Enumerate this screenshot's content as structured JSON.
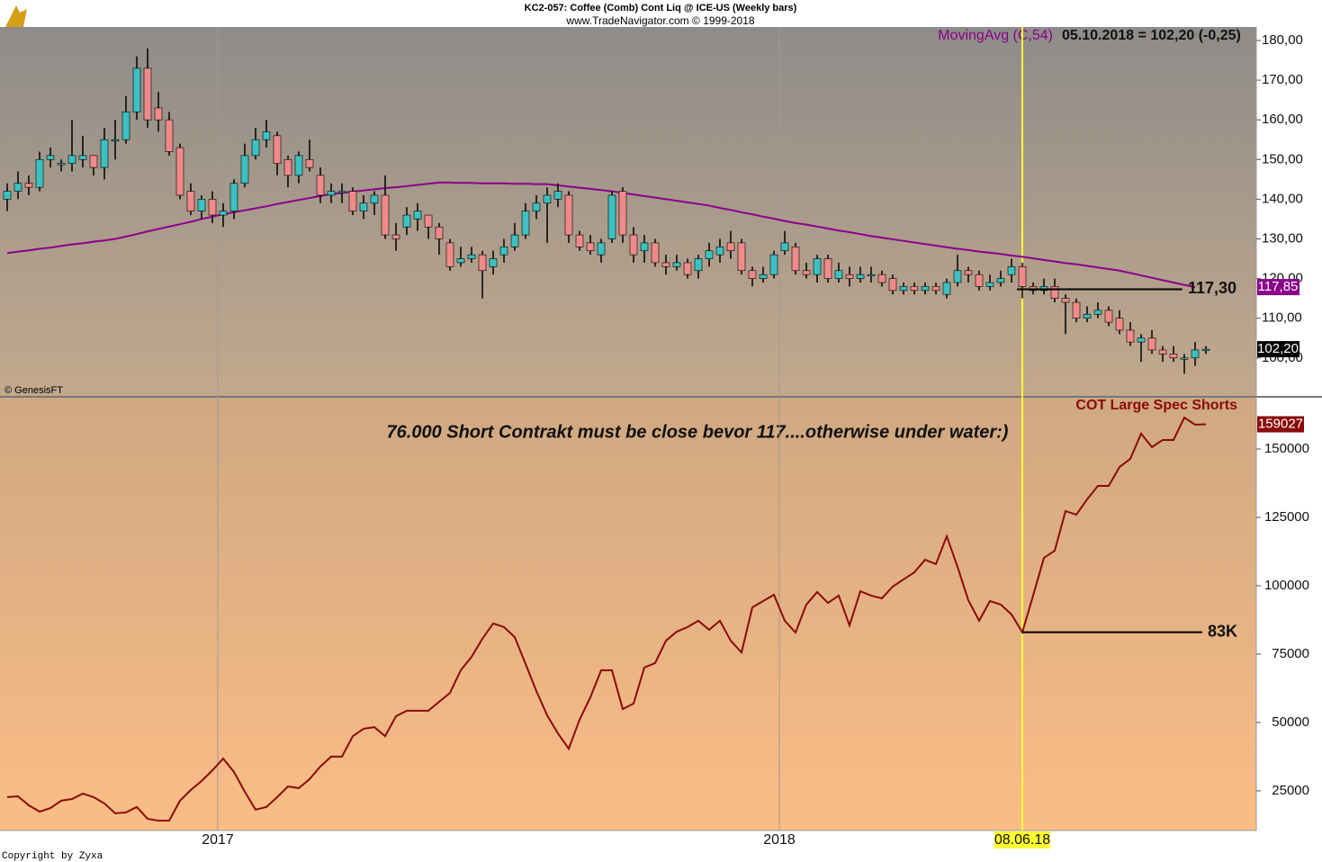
{
  "header": {
    "title": "KC2-057:  Coffee (Comb) Cont Liq @ ICE-US  (Weekly bars)",
    "subtitle": "www.TradeNavigator.com © 1999-2018"
  },
  "footer": "Copyright by Zyxa",
  "chart_data": [
    {
      "type": "candlestick",
      "source": "© GenesisFT",
      "up_color": "#3cc0c0",
      "down_color": "#f08a8a",
      "open": [
        140,
        142,
        144,
        143,
        150,
        149,
        149,
        150,
        151,
        148,
        155,
        155,
        162,
        173,
        163,
        160,
        153,
        142,
        137,
        140,
        136,
        137,
        144,
        151,
        155,
        156,
        150,
        146,
        150,
        146,
        141,
        142,
        142,
        137,
        139,
        141,
        131,
        133,
        135,
        136,
        133,
        129,
        124,
        125,
        126,
        123,
        126,
        128,
        131,
        137,
        139,
        140,
        141,
        131,
        129,
        126,
        130,
        142,
        131,
        127,
        129,
        124,
        123,
        124,
        122,
        125,
        126,
        129,
        129,
        122,
        120,
        121,
        127,
        128,
        122,
        121,
        125,
        120,
        121,
        120,
        121,
        121,
        120,
        117,
        118,
        117,
        118,
        116,
        119,
        122,
        121,
        118,
        119,
        121,
        123,
        118,
        117,
        118,
        115,
        114,
        110,
        111,
        112,
        110,
        107,
        104,
        105,
        102,
        101,
        100,
        100,
        102.2
      ],
      "high": [
        144,
        147,
        146,
        152,
        153,
        150,
        160,
        156,
        151,
        158,
        160,
        166,
        176,
        178,
        167,
        162,
        154,
        144,
        141,
        142,
        139,
        145,
        154,
        158,
        160,
        157,
        151,
        152,
        155,
        148,
        144,
        144,
        143,
        141,
        142,
        146,
        134,
        138,
        139,
        136,
        134,
        130,
        128,
        128,
        127,
        127,
        130,
        134,
        139,
        141,
        143,
        144,
        142,
        132,
        131,
        130,
        142,
        143,
        133,
        131,
        130,
        126,
        126,
        125,
        126,
        129,
        130,
        132,
        130,
        123,
        123,
        127,
        132,
        129,
        124,
        126,
        126,
        124,
        123,
        123,
        123,
        122,
        121,
        119,
        119,
        119,
        119,
        120,
        126,
        123,
        122,
        121,
        122,
        125,
        124,
        119,
        120,
        120,
        116,
        115,
        113,
        114,
        113,
        112,
        109,
        106,
        107,
        103,
        103,
        101,
        104,
        103
      ],
      "low": [
        137,
        140,
        141,
        142,
        148,
        147,
        147,
        148,
        146,
        145,
        150,
        154,
        160,
        158,
        157,
        151,
        140,
        136,
        135,
        134,
        133,
        135,
        143,
        150,
        153,
        146,
        143,
        144,
        147,
        139,
        139,
        139,
        136,
        135,
        136,
        130,
        127,
        131,
        132,
        130,
        126,
        122,
        123,
        124,
        115,
        121,
        124,
        127,
        130,
        135,
        129,
        138,
        129,
        127,
        126,
        124,
        129,
        129,
        124,
        124,
        123,
        121,
        122,
        120,
        120,
        123,
        124,
        125,
        121,
        118,
        119,
        120,
        126,
        121,
        120,
        119,
        119,
        119,
        118,
        119,
        119,
        118,
        116,
        116,
        116,
        116,
        116,
        115,
        118,
        119,
        117,
        117,
        118,
        119,
        115,
        116,
        116,
        114,
        106,
        109,
        109,
        110,
        108,
        106,
        103,
        99,
        101,
        99,
        99,
        96,
        98,
        101
      ],
      "close": [
        142,
        144,
        143,
        150,
        151,
        149,
        151,
        151,
        148,
        155,
        155,
        162,
        173,
        160,
        160,
        152,
        141,
        137,
        140,
        136,
        137,
        144,
        151,
        155,
        157,
        149,
        146,
        151,
        148,
        141,
        142,
        142,
        137,
        139,
        141,
        131,
        130,
        136,
        137,
        133,
        130,
        123,
        125,
        126,
        122,
        125,
        128,
        131,
        137,
        139,
        141,
        142,
        131,
        128,
        127,
        129,
        141,
        131,
        126,
        129,
        124,
        123,
        124,
        121,
        125,
        127,
        128,
        127,
        122,
        120,
        121,
        126,
        129,
        122,
        121,
        125,
        120,
        122,
        120,
        121,
        121,
        119,
        117,
        118,
        117,
        118,
        117,
        119,
        122,
        121,
        118,
        119,
        120,
        123,
        118,
        117,
        118,
        115,
        114,
        110,
        111,
        112,
        109,
        107,
        104,
        105,
        102,
        101,
        100,
        100,
        102,
        102.2
      ],
      "last_label": "102,20",
      "legend_value": "05.10.2018 = 102,20 (-0,25)",
      "series": [
        {
          "name": "MovingAvg (C,54)",
          "color": "#8b008b",
          "last_label": "117,85",
          "values": [
            126.4,
            126.8,
            127.1,
            127.5,
            127.8,
            128.2,
            128.6,
            128.9,
            129.3,
            129.6,
            130.0,
            130.6,
            131.2,
            131.9,
            132.5,
            133.1,
            133.7,
            134.3,
            135.0,
            135.6,
            136.2,
            136.7,
            137.2,
            137.7,
            138.2,
            138.8,
            139.3,
            139.8,
            140.3,
            140.8,
            141.3,
            141.6,
            141.9,
            142.2,
            142.5,
            142.8,
            143.0,
            143.3,
            143.6,
            143.9,
            144.2,
            144.2,
            144.1,
            144.1,
            144.0,
            144.0,
            144.0,
            143.9,
            143.9,
            143.8,
            143.8,
            143.5,
            143.2,
            142.9,
            142.6,
            142.3,
            142.0,
            141.6,
            141.2,
            140.8,
            140.4,
            140.0,
            139.6,
            139.2,
            138.8,
            138.4,
            137.8,
            137.3,
            136.7,
            136.2,
            135.6,
            135.1,
            134.5,
            134.0,
            133.6,
            133.1,
            132.6,
            132.1,
            131.7,
            131.2,
            130.7,
            130.3,
            129.9,
            129.5,
            129.1,
            128.7,
            128.3,
            127.9,
            127.5,
            127.2,
            126.8,
            126.5,
            126.2,
            125.8,
            125.5,
            125.1,
            124.7,
            124.3,
            123.9,
            123.6,
            123.2,
            122.8,
            122.4,
            122.0,
            121.4,
            120.8,
            120.2,
            119.6,
            119.0,
            118.4,
            117.85,
            null
          ]
        }
      ],
      "reference_line": {
        "value": 117.3,
        "label": "117,30"
      },
      "ylim": [
        90.2,
        183.4
      ],
      "yticks": [
        {
          "value": 100,
          "label": "100,00"
        },
        {
          "value": 110,
          "label": "110,00"
        },
        {
          "value": 120,
          "label": "120,00"
        },
        {
          "value": 130,
          "label": "130,00"
        },
        {
          "value": 140,
          "label": "140,00"
        },
        {
          "value": 150,
          "label": "150,00"
        },
        {
          "value": 160,
          "label": "160,00"
        },
        {
          "value": 170,
          "label": "170,00"
        },
        {
          "value": 180,
          "label": "180,00"
        }
      ]
    },
    {
      "type": "line",
      "series": [
        {
          "name": "COT Large Spec Shorts",
          "color": "#8b0a0a",
          "values": [
            22700,
            23000,
            19700,
            17400,
            18700,
            21400,
            22000,
            24000,
            22700,
            20400,
            16800,
            17100,
            19100,
            14800,
            14100,
            14100,
            21400,
            25300,
            28600,
            32500,
            36800,
            31900,
            24700,
            18100,
            19100,
            22700,
            26600,
            26000,
            29300,
            33900,
            37500,
            37500,
            45000,
            47700,
            48300,
            45000,
            52300,
            54300,
            54300,
            54300,
            57600,
            60800,
            69100,
            74000,
            80600,
            86200,
            84900,
            81200,
            71400,
            61500,
            52600,
            46000,
            40400,
            51000,
            59200,
            69100,
            69100,
            54900,
            56900,
            70100,
            71700,
            79900,
            83200,
            84900,
            87200,
            83900,
            87200,
            79900,
            75600,
            92100,
            94400,
            96700,
            87200,
            82900,
            93100,
            97700,
            93700,
            96400,
            85500,
            98000,
            96400,
            95400,
            99700,
            102300,
            104900,
            109500,
            107900,
            118100,
            106900,
            94700,
            87200,
            94400,
            93100,
            89500,
            83000,
            96400,
            110200,
            112800,
            127300,
            126000,
            131600,
            136500,
            136500,
            143400,
            146400,
            155600,
            150700,
            153300,
            153300,
            161500,
            158900,
            159027
          ]
        }
      ],
      "annotation": "76.000 Short Contrakt must be close bevor 117....otherwise under water:)",
      "reference_line": {
        "value": 83000,
        "label": "83K"
      },
      "ylim": [
        10500,
        168750
      ],
      "yticks": [
        25000,
        50000,
        75000,
        100000,
        125000,
        150000
      ],
      "xticks": [
        {
          "value": 19.5,
          "label": "2017"
        },
        {
          "value": 71.5,
          "label": "2018"
        },
        {
          "value": 94,
          "label": "08.06.18"
        }
      ],
      "highlight_color": "#ffff33"
    }
  ]
}
